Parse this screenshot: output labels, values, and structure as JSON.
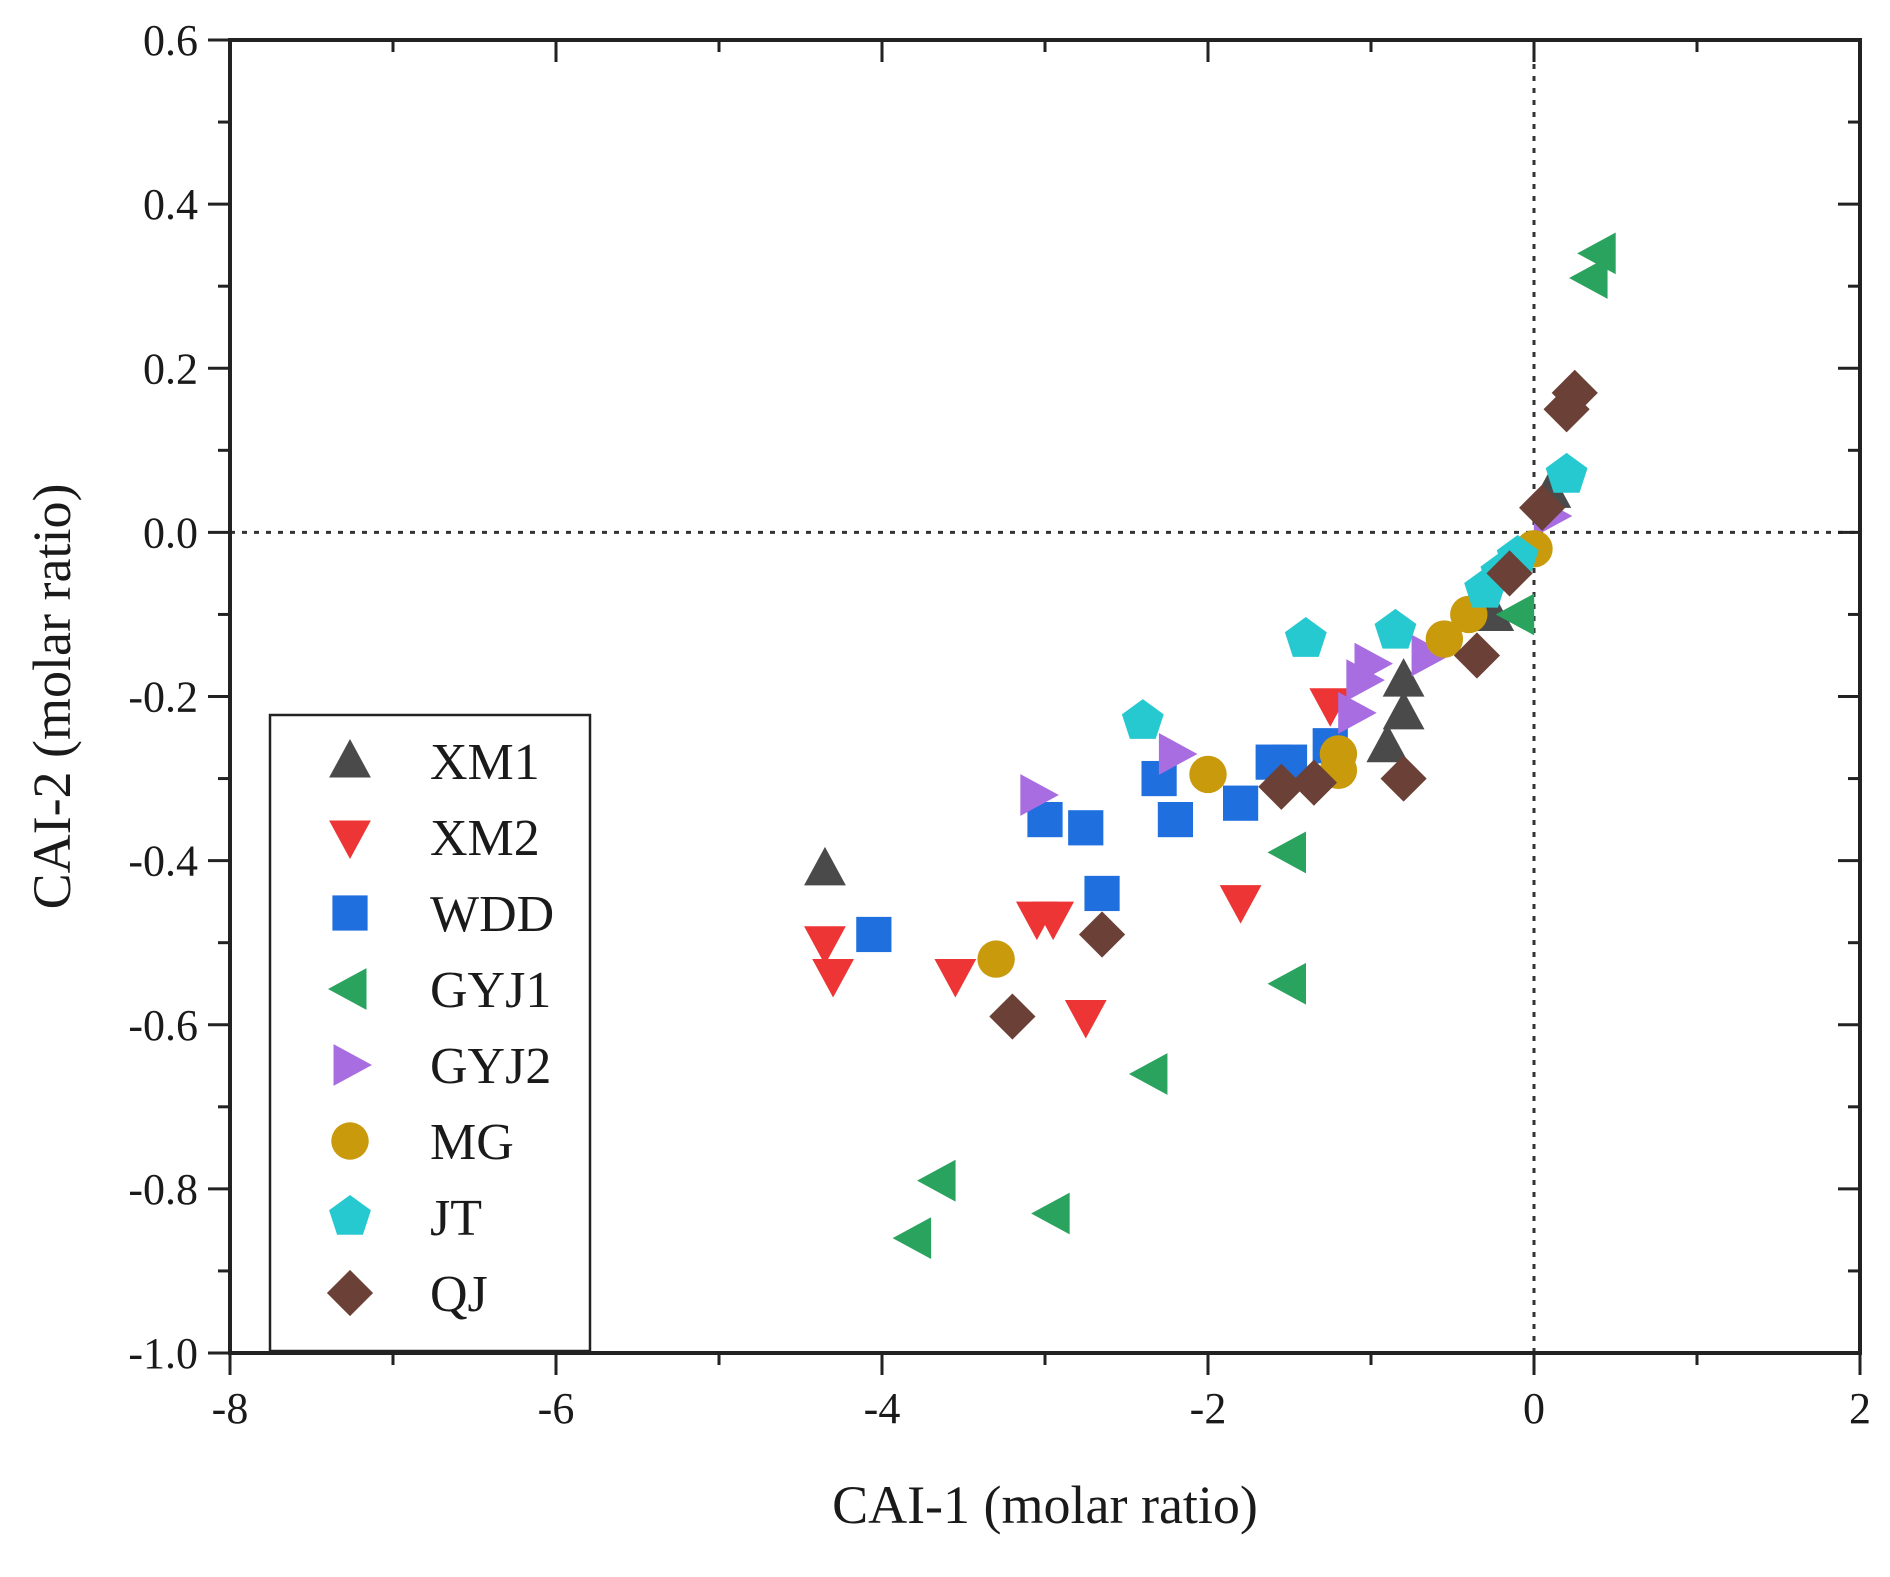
{
  "chart_data": {
    "type": "scatter",
    "xlabel": "CAI-1 (molar ratio)",
    "ylabel": "CAI-2 (molar ratio)",
    "xlim": [
      -8,
      2
    ],
    "ylim": [
      -1.0,
      0.6
    ],
    "xticks": [
      -8,
      -6,
      -4,
      -2,
      0,
      2
    ],
    "xtick_labels": [
      "-8",
      "-6",
      "-4",
      "-2",
      "0",
      "2"
    ],
    "yticks": [
      -1.0,
      -0.8,
      -0.6,
      -0.4,
      -0.2,
      0.0,
      0.2,
      0.4,
      0.6
    ],
    "ytick_labels": [
      "-1.0",
      "-0.8",
      "-0.6",
      "-0.4",
      "-0.2",
      "0.0",
      "0.2",
      "0.4",
      "0.6"
    ],
    "reference_lines": {
      "x": 0,
      "y": 0,
      "style": "dotted"
    },
    "grid": false,
    "legend_position": "bottom-left",
    "series": [
      {
        "name": "XM1",
        "marker": "triangle-up",
        "color": "#4a4a4a",
        "points": [
          [
            -4.35,
            -0.41
          ],
          [
            -0.9,
            -0.26
          ],
          [
            -0.8,
            -0.22
          ],
          [
            -0.8,
            -0.18
          ],
          [
            -0.25,
            -0.1
          ],
          [
            0.1,
            0.05
          ]
        ]
      },
      {
        "name": "XM2",
        "marker": "triangle-down",
        "color": "#ee3535",
        "points": [
          [
            -4.35,
            -0.5
          ],
          [
            -4.3,
            -0.54
          ],
          [
            -3.55,
            -0.54
          ],
          [
            -3.05,
            -0.47
          ],
          [
            -2.95,
            -0.47
          ],
          [
            -2.75,
            -0.59
          ],
          [
            -1.8,
            -0.45
          ],
          [
            -1.25,
            -0.21
          ]
        ]
      },
      {
        "name": "WDD",
        "marker": "square",
        "color": "#1f6fde",
        "points": [
          [
            -4.05,
            -0.49
          ],
          [
            -3.0,
            -0.35
          ],
          [
            -2.75,
            -0.36
          ],
          [
            -2.65,
            -0.44
          ],
          [
            -2.3,
            -0.3
          ],
          [
            -2.2,
            -0.35
          ],
          [
            -1.8,
            -0.33
          ],
          [
            -1.6,
            -0.28
          ],
          [
            -1.5,
            -0.28
          ],
          [
            -1.25,
            -0.26
          ]
        ]
      },
      {
        "name": "GYJ1",
        "marker": "triangle-left",
        "color": "#2aa35e",
        "points": [
          [
            -3.8,
            -0.86
          ],
          [
            -3.65,
            -0.79
          ],
          [
            -2.95,
            -0.83
          ],
          [
            -2.35,
            -0.66
          ],
          [
            -1.5,
            -0.55
          ],
          [
            -1.5,
            -0.39
          ],
          [
            -0.1,
            -0.1
          ],
          [
            0.35,
            0.31
          ],
          [
            0.4,
            0.34
          ]
        ]
      },
      {
        "name": "GYJ2",
        "marker": "triangle-right",
        "color": "#a86de0",
        "points": [
          [
            -3.05,
            -0.32
          ],
          [
            -2.2,
            -0.27
          ],
          [
            -1.1,
            -0.22
          ],
          [
            -1.05,
            -0.18
          ],
          [
            -1.0,
            -0.16
          ],
          [
            -0.65,
            -0.15
          ],
          [
            0.1,
            0.02
          ]
        ]
      },
      {
        "name": "MG",
        "marker": "circle",
        "color": "#c99a0c",
        "points": [
          [
            -3.3,
            -0.52
          ],
          [
            -2.0,
            -0.295
          ],
          [
            -1.2,
            -0.27
          ],
          [
            -1.2,
            -0.29
          ],
          [
            -0.55,
            -0.13
          ],
          [
            -0.4,
            -0.1
          ],
          [
            0.0,
            -0.02
          ]
        ]
      },
      {
        "name": "JT",
        "marker": "pentagon",
        "color": "#27c9d1",
        "points": [
          [
            -2.4,
            -0.23
          ],
          [
            -1.4,
            -0.13
          ],
          [
            -0.85,
            -0.12
          ],
          [
            -0.3,
            -0.07
          ],
          [
            -0.2,
            -0.05
          ],
          [
            -0.1,
            -0.03
          ],
          [
            0.2,
            0.07
          ]
        ]
      },
      {
        "name": "QJ",
        "marker": "diamond",
        "color": "#6b4036",
        "points": [
          [
            -3.2,
            -0.59
          ],
          [
            -2.65,
            -0.49
          ],
          [
            -1.55,
            -0.31
          ],
          [
            -1.35,
            -0.305
          ],
          [
            -0.8,
            -0.3
          ],
          [
            -0.35,
            -0.15
          ],
          [
            -0.15,
            -0.05
          ],
          [
            0.05,
            0.03
          ],
          [
            0.2,
            0.15
          ],
          [
            0.25,
            0.17
          ]
        ]
      }
    ]
  }
}
